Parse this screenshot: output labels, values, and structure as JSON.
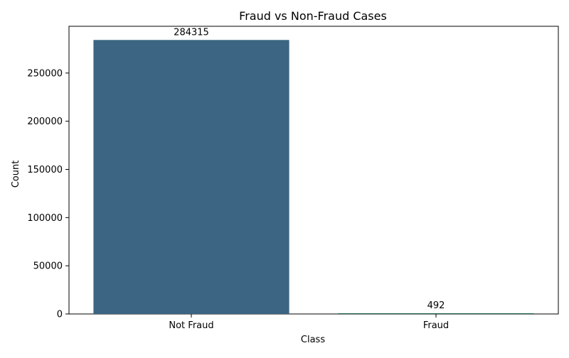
{
  "chart_data": {
    "type": "bar",
    "title": "Fraud vs Non-Fraud Cases",
    "xlabel": "Class",
    "ylabel": "Count",
    "categories": [
      "Not Fraud",
      "Fraud"
    ],
    "values": [
      284315,
      492
    ],
    "data_labels": [
      "284315",
      "492"
    ],
    "colors": [
      "#3b6582",
      "#1f6e4d"
    ],
    "ylim": [
      0,
      298531
    ],
    "yticks": [
      0,
      50000,
      100000,
      150000,
      200000,
      250000
    ],
    "ytick_labels": [
      "0",
      "50000",
      "100000",
      "150000",
      "200000",
      "250000"
    ],
    "grid": false,
    "legend": false
  }
}
